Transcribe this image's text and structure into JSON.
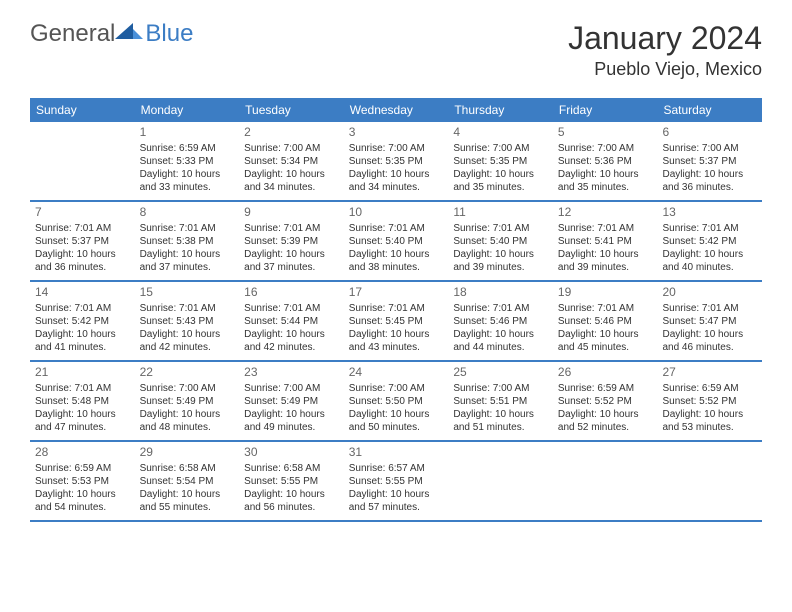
{
  "logo": {
    "text_general": "General",
    "text_blue": "Blue"
  },
  "title": "January 2024",
  "location": "Pueblo Viejo, Mexico",
  "colors": {
    "header_bg": "#3c7dc4",
    "header_text": "#ffffff",
    "border": "#3c7dc4",
    "daynum": "#666666",
    "body_text": "#333333",
    "logo_gray": "#555555",
    "logo_blue": "#3c7dc4"
  },
  "day_headers": [
    "Sunday",
    "Monday",
    "Tuesday",
    "Wednesday",
    "Thursday",
    "Friday",
    "Saturday"
  ],
  "weeks": [
    [
      {
        "day": "",
        "sunrise": "",
        "sunset": "",
        "daylight": ""
      },
      {
        "day": "1",
        "sunrise": "Sunrise: 6:59 AM",
        "sunset": "Sunset: 5:33 PM",
        "daylight": "Daylight: 10 hours and 33 minutes."
      },
      {
        "day": "2",
        "sunrise": "Sunrise: 7:00 AM",
        "sunset": "Sunset: 5:34 PM",
        "daylight": "Daylight: 10 hours and 34 minutes."
      },
      {
        "day": "3",
        "sunrise": "Sunrise: 7:00 AM",
        "sunset": "Sunset: 5:35 PM",
        "daylight": "Daylight: 10 hours and 34 minutes."
      },
      {
        "day": "4",
        "sunrise": "Sunrise: 7:00 AM",
        "sunset": "Sunset: 5:35 PM",
        "daylight": "Daylight: 10 hours and 35 minutes."
      },
      {
        "day": "5",
        "sunrise": "Sunrise: 7:00 AM",
        "sunset": "Sunset: 5:36 PM",
        "daylight": "Daylight: 10 hours and 35 minutes."
      },
      {
        "day": "6",
        "sunrise": "Sunrise: 7:00 AM",
        "sunset": "Sunset: 5:37 PM",
        "daylight": "Daylight: 10 hours and 36 minutes."
      }
    ],
    [
      {
        "day": "7",
        "sunrise": "Sunrise: 7:01 AM",
        "sunset": "Sunset: 5:37 PM",
        "daylight": "Daylight: 10 hours and 36 minutes."
      },
      {
        "day": "8",
        "sunrise": "Sunrise: 7:01 AM",
        "sunset": "Sunset: 5:38 PM",
        "daylight": "Daylight: 10 hours and 37 minutes."
      },
      {
        "day": "9",
        "sunrise": "Sunrise: 7:01 AM",
        "sunset": "Sunset: 5:39 PM",
        "daylight": "Daylight: 10 hours and 37 minutes."
      },
      {
        "day": "10",
        "sunrise": "Sunrise: 7:01 AM",
        "sunset": "Sunset: 5:40 PM",
        "daylight": "Daylight: 10 hours and 38 minutes."
      },
      {
        "day": "11",
        "sunrise": "Sunrise: 7:01 AM",
        "sunset": "Sunset: 5:40 PM",
        "daylight": "Daylight: 10 hours and 39 minutes."
      },
      {
        "day": "12",
        "sunrise": "Sunrise: 7:01 AM",
        "sunset": "Sunset: 5:41 PM",
        "daylight": "Daylight: 10 hours and 39 minutes."
      },
      {
        "day": "13",
        "sunrise": "Sunrise: 7:01 AM",
        "sunset": "Sunset: 5:42 PM",
        "daylight": "Daylight: 10 hours and 40 minutes."
      }
    ],
    [
      {
        "day": "14",
        "sunrise": "Sunrise: 7:01 AM",
        "sunset": "Sunset: 5:42 PM",
        "daylight": "Daylight: 10 hours and 41 minutes."
      },
      {
        "day": "15",
        "sunrise": "Sunrise: 7:01 AM",
        "sunset": "Sunset: 5:43 PM",
        "daylight": "Daylight: 10 hours and 42 minutes."
      },
      {
        "day": "16",
        "sunrise": "Sunrise: 7:01 AM",
        "sunset": "Sunset: 5:44 PM",
        "daylight": "Daylight: 10 hours and 42 minutes."
      },
      {
        "day": "17",
        "sunrise": "Sunrise: 7:01 AM",
        "sunset": "Sunset: 5:45 PM",
        "daylight": "Daylight: 10 hours and 43 minutes."
      },
      {
        "day": "18",
        "sunrise": "Sunrise: 7:01 AM",
        "sunset": "Sunset: 5:46 PM",
        "daylight": "Daylight: 10 hours and 44 minutes."
      },
      {
        "day": "19",
        "sunrise": "Sunrise: 7:01 AM",
        "sunset": "Sunset: 5:46 PM",
        "daylight": "Daylight: 10 hours and 45 minutes."
      },
      {
        "day": "20",
        "sunrise": "Sunrise: 7:01 AM",
        "sunset": "Sunset: 5:47 PM",
        "daylight": "Daylight: 10 hours and 46 minutes."
      }
    ],
    [
      {
        "day": "21",
        "sunrise": "Sunrise: 7:01 AM",
        "sunset": "Sunset: 5:48 PM",
        "daylight": "Daylight: 10 hours and 47 minutes."
      },
      {
        "day": "22",
        "sunrise": "Sunrise: 7:00 AM",
        "sunset": "Sunset: 5:49 PM",
        "daylight": "Daylight: 10 hours and 48 minutes."
      },
      {
        "day": "23",
        "sunrise": "Sunrise: 7:00 AM",
        "sunset": "Sunset: 5:49 PM",
        "daylight": "Daylight: 10 hours and 49 minutes."
      },
      {
        "day": "24",
        "sunrise": "Sunrise: 7:00 AM",
        "sunset": "Sunset: 5:50 PM",
        "daylight": "Daylight: 10 hours and 50 minutes."
      },
      {
        "day": "25",
        "sunrise": "Sunrise: 7:00 AM",
        "sunset": "Sunset: 5:51 PM",
        "daylight": "Daylight: 10 hours and 51 minutes."
      },
      {
        "day": "26",
        "sunrise": "Sunrise: 6:59 AM",
        "sunset": "Sunset: 5:52 PM",
        "daylight": "Daylight: 10 hours and 52 minutes."
      },
      {
        "day": "27",
        "sunrise": "Sunrise: 6:59 AM",
        "sunset": "Sunset: 5:52 PM",
        "daylight": "Daylight: 10 hours and 53 minutes."
      }
    ],
    [
      {
        "day": "28",
        "sunrise": "Sunrise: 6:59 AM",
        "sunset": "Sunset: 5:53 PM",
        "daylight": "Daylight: 10 hours and 54 minutes."
      },
      {
        "day": "29",
        "sunrise": "Sunrise: 6:58 AM",
        "sunset": "Sunset: 5:54 PM",
        "daylight": "Daylight: 10 hours and 55 minutes."
      },
      {
        "day": "30",
        "sunrise": "Sunrise: 6:58 AM",
        "sunset": "Sunset: 5:55 PM",
        "daylight": "Daylight: 10 hours and 56 minutes."
      },
      {
        "day": "31",
        "sunrise": "Sunrise: 6:57 AM",
        "sunset": "Sunset: 5:55 PM",
        "daylight": "Daylight: 10 hours and 57 minutes."
      },
      {
        "day": "",
        "sunrise": "",
        "sunset": "",
        "daylight": ""
      },
      {
        "day": "",
        "sunrise": "",
        "sunset": "",
        "daylight": ""
      },
      {
        "day": "",
        "sunrise": "",
        "sunset": "",
        "daylight": ""
      }
    ]
  ]
}
